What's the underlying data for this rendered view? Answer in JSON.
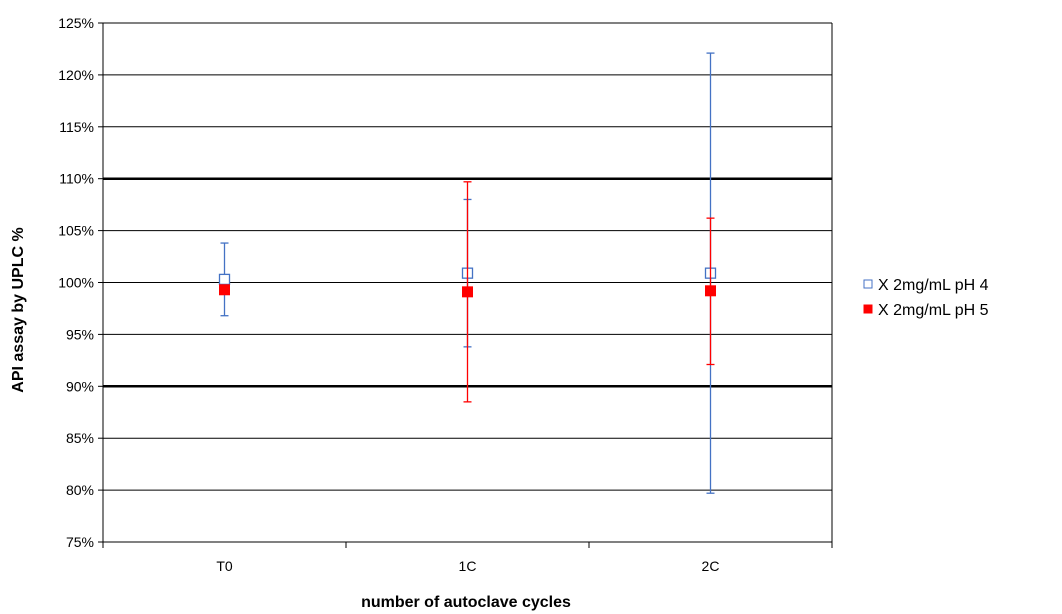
{
  "chart_data": {
    "type": "scatter",
    "title": "",
    "xlabel": "number of autoclave cycles",
    "ylabel": "API assay by UPLC %",
    "categories": [
      "T0",
      "1C",
      "2C"
    ],
    "ylim": [
      75,
      125
    ],
    "ytick_step": 5,
    "ytick_labels": [
      "75%",
      "80%",
      "85%",
      "90%",
      "95%",
      "100%",
      "105%",
      "110%",
      "115%",
      "120%",
      "125%"
    ],
    "grid": true,
    "reference_lines": [
      90,
      110
    ],
    "legend_position": "right",
    "series": [
      {
        "name": "X 2mg/mL pH 4",
        "marker": "open-square",
        "color": "#4472c4",
        "values": [
          100.3,
          100.9,
          100.9
        ],
        "error_low": [
          96.8,
          93.8,
          79.7
        ],
        "error_high": [
          103.8,
          108.0,
          122.1
        ]
      },
      {
        "name": "X 2mg/mL pH 5",
        "marker": "filled-square",
        "color": "#ff0000",
        "values": [
          99.3,
          99.1,
          99.2
        ],
        "error_low": [
          null,
          88.5,
          92.1
        ],
        "error_high": [
          null,
          109.7,
          106.2
        ]
      }
    ]
  }
}
